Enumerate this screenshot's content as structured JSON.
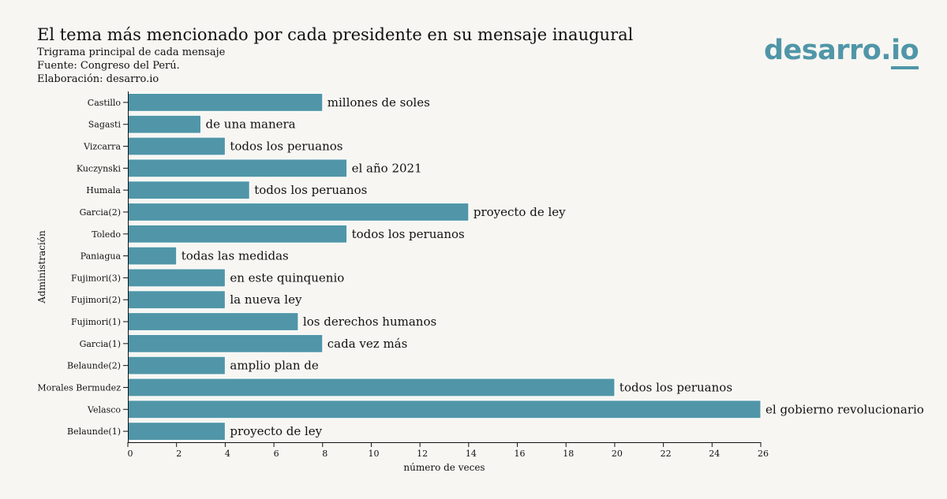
{
  "header": {
    "title": "El tema más mencionado por cada presidente en su mensaje inaugural",
    "subtitle": "Trigrama principal de cada mensaje",
    "source": "Fuente: Congreso del Perú.",
    "credit": "Elaboración: desarro.io"
  },
  "logo": {
    "main": "desarro.",
    "suffix": "io"
  },
  "colors": {
    "bar": "#5096a8",
    "background": "#f7f6f2"
  },
  "chart_data": {
    "type": "bar",
    "orientation": "horizontal",
    "categories": [
      "Castillo",
      "Sagasti",
      "Vizcarra",
      "Kuczynski",
      "Humala",
      "Garcia(2)",
      "Toledo",
      "Paniagua",
      "Fujimori(3)",
      "Fujimori(2)",
      "Fujimori(1)",
      "Garcia(1)",
      "Belaunde(2)",
      "Morales Bermudez",
      "Velasco",
      "Belaunde(1)"
    ],
    "values": [
      8,
      3,
      4,
      9,
      5,
      14,
      9,
      2,
      4,
      4,
      7,
      8,
      4,
      20,
      26,
      4
    ],
    "data_labels": [
      "millones de soles",
      "de una manera",
      "todos los peruanos",
      "el año 2021",
      "todos los peruanos",
      "proyecto de ley",
      "todos los peruanos",
      "todas las medidas",
      "en este quinquenio",
      "la nueva ley",
      "los derechos humanos",
      "cada vez más",
      "amplio plan de",
      "todos los peruanos",
      "el gobierno revolucionario",
      "proyecto de ley"
    ],
    "xlabel": "número de veces",
    "ylabel": "Administración",
    "xlim": [
      0,
      26
    ],
    "xticks": [
      "0",
      "2",
      "4",
      "6",
      "8",
      "10",
      "12",
      "14",
      "16",
      "18",
      "20",
      "22",
      "24",
      "26"
    ],
    "grid": false
  }
}
